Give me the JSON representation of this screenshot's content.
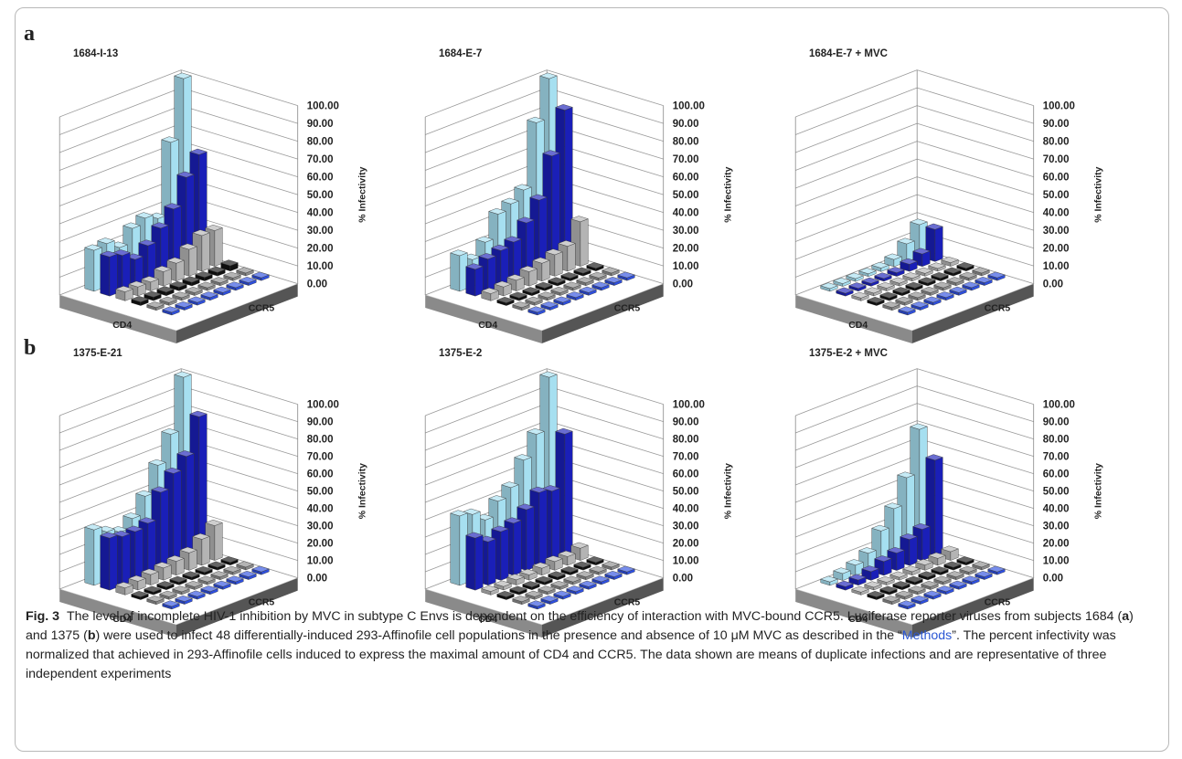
{
  "figure": {
    "panels": [
      {
        "letter": "a"
      },
      {
        "letter": "b"
      }
    ],
    "caption": {
      "label": "Fig. 3",
      "part1": "The level of incomplete HIV-1 inhibition by MVC in subtype C Envs is dependent on the efficiency of interaction with MVC-bound CCR5. Luciferase reporter viruses from subjects 1684 (",
      "a": "a",
      "part2": ") and 1375 (",
      "b": "b",
      "part3": ") were used to infect 48 differentially-induced 293-Affinofile cell populations in the presence and absence of 10 μM MVC as described in the “",
      "link": "Methods",
      "part4": "”. The percent infectivity was normalized that achieved in 293-Affinofile cells induced to express the maximal amount of CD4 and CCR5. The data shown are means of duplicate infections and are representative of three independent experiments"
    }
  },
  "colors": {
    "light_blue": "#a6dff0",
    "dark_blue": "#1a1fb8",
    "gray": "#b4b4b4",
    "black": "#111111",
    "mid_gray": "#8c8c8c",
    "blue": "#2e4fe0",
    "floor": "#555555"
  },
  "chart_data": [
    {
      "type": "bar",
      "title": "1684-I-13",
      "zlabel": "% Infectivity",
      "xlabel": "CD4",
      "ylabel": "CCR5",
      "zticks": [
        "0.00",
        "10.00",
        "20.00",
        "30.00",
        "40.00",
        "50.00",
        "60.00",
        "70.00",
        "80.00",
        "90.00",
        "100.00"
      ],
      "zlim": [
        0,
        100
      ],
      "rows": [
        {
          "name": "row1",
          "values": [
            23,
            24,
            19,
            27,
            30,
            27,
            67,
            100
          ]
        },
        {
          "name": "row2",
          "values": [
            22,
            20,
            15,
            20,
            27,
            35,
            50,
            60
          ]
        },
        {
          "name": "row3",
          "values": [
            5,
            5,
            5,
            8,
            10,
            15,
            20,
            20
          ]
        },
        {
          "name": "row4",
          "values": [
            2,
            2,
            2,
            2,
            2,
            2,
            2,
            3
          ]
        },
        {
          "name": "row5",
          "values": [
            1,
            1,
            1,
            1,
            1,
            1,
            1,
            1
          ]
        },
        {
          "name": "row6",
          "values": [
            1,
            1,
            1,
            1,
            1,
            1,
            1,
            1
          ]
        }
      ]
    },
    {
      "type": "bar",
      "title": "1684-E-7",
      "zlabel": "% Infectivity",
      "xlabel": "CD4",
      "ylabel": "CCR5",
      "zticks": [
        "0.00",
        "10.00",
        "20.00",
        "30.00",
        "40.00",
        "50.00",
        "60.00",
        "70.00",
        "80.00",
        "90.00",
        "100.00"
      ],
      "zlim": [
        0,
        100
      ],
      "rows": [
        {
          "name": "row1",
          "values": [
            20,
            15,
            22,
            35,
            38,
            43,
            78,
            100
          ]
        },
        {
          "name": "row2",
          "values": [
            15,
            18,
            20,
            22,
            30,
            40,
            62,
            85
          ]
        },
        {
          "name": "row3",
          "values": [
            4,
            5,
            6,
            8,
            10,
            12,
            14,
            25
          ]
        },
        {
          "name": "row4",
          "values": [
            1,
            1,
            1,
            1,
            1,
            1,
            1,
            1
          ]
        },
        {
          "name": "row5",
          "values": [
            1,
            1,
            1,
            1,
            1,
            1,
            1,
            1
          ]
        },
        {
          "name": "row6",
          "values": [
            1,
            1,
            1,
            1,
            1,
            1,
            1,
            1
          ]
        }
      ]
    },
    {
      "type": "bar",
      "title": "1684-E-7 + MVC",
      "zlabel": "% Infectivity",
      "xlabel": "CD4",
      "ylabel": "CCR5",
      "zticks": [
        "0.00",
        "10.00",
        "20.00",
        "30.00",
        "40.00",
        "50.00",
        "60.00",
        "70.00",
        "80.00",
        "90.00",
        "100.00"
      ],
      "zlim": [
        0,
        100
      ],
      "rows": [
        {
          "name": "row1",
          "values": [
            1,
            1,
            1,
            1,
            2,
            4,
            10,
            18
          ]
        },
        {
          "name": "row2",
          "values": [
            1,
            1,
            1,
            1,
            2,
            4,
            7,
            18
          ]
        },
        {
          "name": "row3",
          "values": [
            1,
            1,
            1,
            1,
            1,
            1,
            1,
            2
          ]
        },
        {
          "name": "row4",
          "values": [
            1,
            1,
            1,
            1,
            1,
            1,
            1,
            1
          ]
        },
        {
          "name": "row5",
          "values": [
            1,
            1,
            1,
            1,
            1,
            1,
            1,
            1
          ]
        },
        {
          "name": "row6",
          "values": [
            1,
            1,
            1,
            1,
            1,
            1,
            1,
            1
          ]
        }
      ]
    },
    {
      "type": "bar",
      "title": "1375-E-21",
      "zlabel": "% Infectivity",
      "xlabel": "CD4",
      "ylabel": "CCR5",
      "zticks": [
        "0.00",
        "10.00",
        "20.00",
        "30.00",
        "40.00",
        "50.00",
        "60.00",
        "70.00",
        "80.00",
        "90.00",
        "100.00"
      ],
      "zlim": [
        0,
        100
      ],
      "rows": [
        {
          "name": "row1",
          "values": [
            32,
            28,
            25,
            30,
            40,
            55,
            70,
            100
          ]
        },
        {
          "name": "row2",
          "values": [
            30,
            28,
            28,
            30,
            45,
            53,
            60,
            80
          ]
        },
        {
          "name": "row3",
          "values": [
            4,
            5,
            6,
            7,
            8,
            10,
            15,
            20
          ]
        },
        {
          "name": "row4",
          "values": [
            1,
            1,
            1,
            1,
            1,
            1,
            1,
            1
          ]
        },
        {
          "name": "row5",
          "values": [
            1,
            1,
            1,
            1,
            1,
            1,
            1,
            1
          ]
        },
        {
          "name": "row6",
          "values": [
            1,
            1,
            1,
            1,
            1,
            1,
            1,
            1
          ]
        }
      ]
    },
    {
      "type": "bar",
      "title": "1375-E-2",
      "zlabel": "% Infectivity",
      "xlabel": "CD4",
      "ylabel": "CCR5",
      "zticks": [
        "0.00",
        "10.00",
        "20.00",
        "30.00",
        "40.00",
        "50.00",
        "60.00",
        "70.00",
        "80.00",
        "90.00",
        "100.00"
      ],
      "zlim": [
        0,
        100
      ],
      "rows": [
        {
          "name": "row1",
          "values": [
            40,
            38,
            32,
            40,
            45,
            58,
            70,
            100
          ]
        },
        {
          "name": "row2",
          "values": [
            30,
            25,
            28,
            30,
            35,
            42,
            40,
            70
          ]
        },
        {
          "name": "row3",
          "values": [
            2,
            2,
            3,
            3,
            4,
            5,
            5,
            7
          ]
        },
        {
          "name": "row4",
          "values": [
            1,
            1,
            1,
            1,
            1,
            1,
            1,
            1
          ]
        },
        {
          "name": "row5",
          "values": [
            1,
            1,
            1,
            1,
            1,
            1,
            1,
            1
          ]
        },
        {
          "name": "row6",
          "values": [
            1,
            1,
            1,
            1,
            1,
            1,
            1,
            1
          ]
        }
      ]
    },
    {
      "type": "bar",
      "title": "1375-E-2 + MVC",
      "zlabel": "% Infectivity",
      "xlabel": "CD4",
      "ylabel": "CCR5",
      "zticks": [
        "0.00",
        "10.00",
        "20.00",
        "30.00",
        "40.00",
        "50.00",
        "60.00",
        "70.00",
        "80.00",
        "90.00",
        "100.00"
      ],
      "zlim": [
        0,
        100
      ],
      "rows": [
        {
          "name": "row1",
          "values": [
            2,
            4,
            6,
            10,
            20,
            30,
            45,
            70
          ]
        },
        {
          "name": "row2",
          "values": [
            2,
            3,
            5,
            8,
            10,
            15,
            18,
            55
          ]
        },
        {
          "name": "row3",
          "values": [
            1,
            1,
            1,
            1,
            2,
            3,
            4,
            5
          ]
        },
        {
          "name": "row4",
          "values": [
            1,
            1,
            1,
            1,
            1,
            1,
            1,
            1
          ]
        },
        {
          "name": "row5",
          "values": [
            1,
            1,
            1,
            1,
            1,
            1,
            1,
            1
          ]
        },
        {
          "name": "row6",
          "values": [
            1,
            1,
            1,
            1,
            1,
            1,
            1,
            1
          ]
        }
      ]
    }
  ]
}
